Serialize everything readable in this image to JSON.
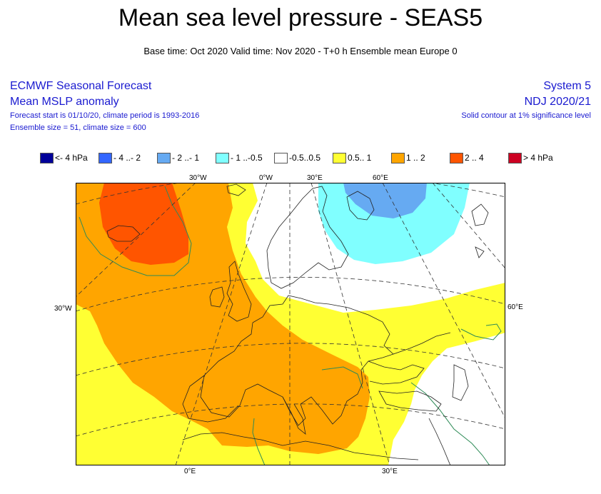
{
  "title": "Mean sea level pressure - SEAS5",
  "subtitle": "Base time: Oct 2020 Valid time: Nov 2020 - T+0 h Ensemble mean Europe 0",
  "header_left": {
    "line1": "ECMWF Seasonal Forecast",
    "line2": "Mean MSLP anomaly",
    "line3": "Forecast start is 01/10/20, climate period is 1993-2016",
    "line4": "Ensemble size = 51, climate size = 600"
  },
  "header_right": {
    "line1": "System 5",
    "line2": "NDJ 2020/21",
    "line3": "Solid contour at 1% significance level"
  },
  "legend": [
    {
      "label": "<- 4 hPa",
      "color": "#000099"
    },
    {
      "label": "- 4 ..- 2",
      "color": "#3366ff"
    },
    {
      "label": "- 2 ..- 1",
      "color": "#66aaf2"
    },
    {
      "label": "- 1 ..-0.5",
      "color": "#80ffff"
    },
    {
      "label": "-0.5..0.5",
      "color": "#ffffff"
    },
    {
      "label": "0.5.. 1",
      "color": "#ffff33"
    },
    {
      "label": "1 .. 2",
      "color": "#ffa500"
    },
    {
      "label": "2 .. 4",
      "color": "#ff5500"
    },
    {
      "label": ">  4 hPa",
      "color": "#cc0022"
    }
  ],
  "ticks": {
    "top": [
      "30°W",
      "0°W",
      "30°E",
      "60°E"
    ],
    "left": "30°W",
    "right": "60°E",
    "bottom": [
      "0°E",
      "30°E"
    ]
  }
}
